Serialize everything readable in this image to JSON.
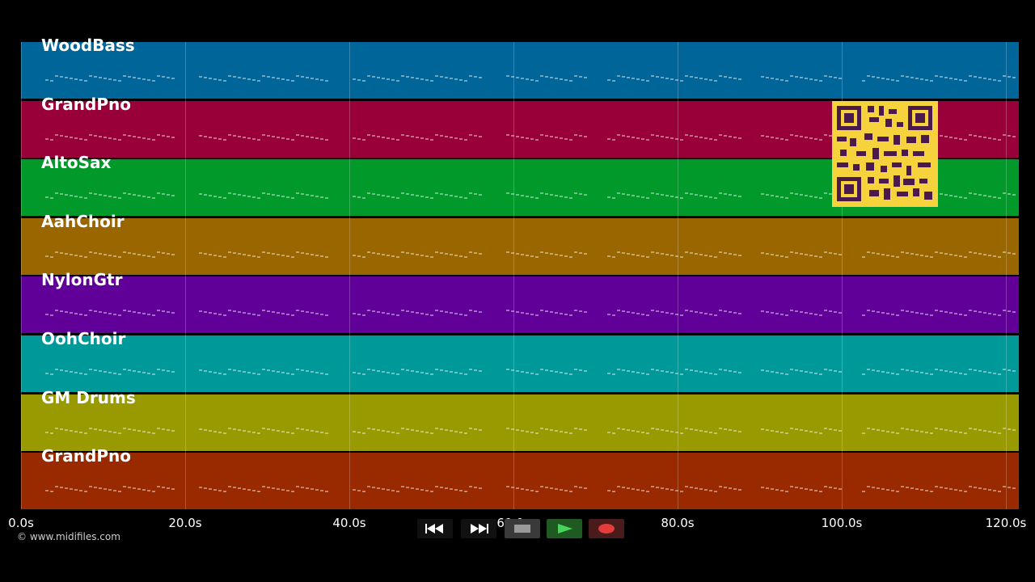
{
  "tracks": [
    {
      "name": "WoodBass",
      "color": "#006699"
    },
    {
      "name": "GrandPno",
      "color": "#99003a"
    },
    {
      "name": "AltoSax",
      "color": "#00992a"
    },
    {
      "name": "AahChoir",
      "color": "#996600"
    },
    {
      "name": "NylonGtr",
      "color": "#600099"
    },
    {
      "name": "OohChoir",
      "color": "#009999"
    },
    {
      "name": "GM Drums",
      "color": "#999900"
    },
    {
      "name": "GrandPno",
      "color": "#992a00"
    }
  ],
  "timeline": {
    "ticks": [
      "0.0s",
      "20.0s",
      "40.0s",
      "60.0s",
      "80.0s",
      "100.0s",
      "120.0s"
    ]
  },
  "transport": {
    "rewind_icon": "rewind-icon",
    "forward_icon": "fast-forward-icon",
    "stop_icon": "stop-icon",
    "play_icon": "play-icon",
    "record_icon": "record-icon"
  },
  "footer": {
    "copyright": "© www.midifiles.com"
  }
}
